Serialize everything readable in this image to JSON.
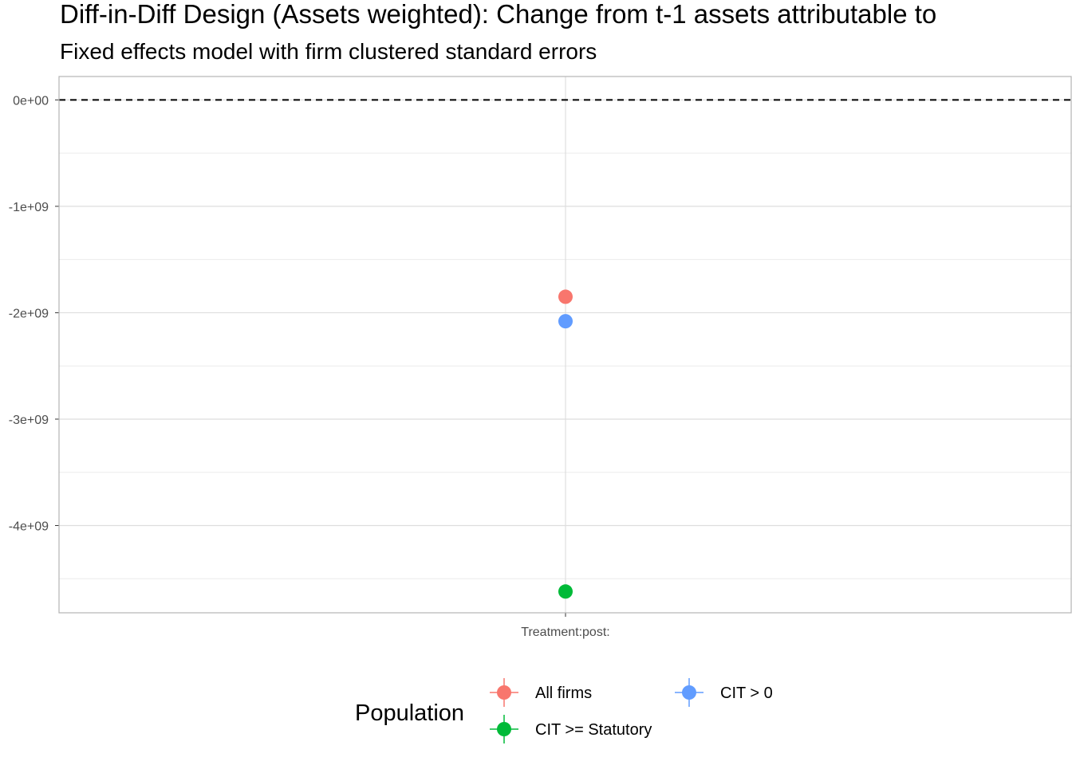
{
  "chart_data": {
    "type": "scatter",
    "title": "Diff-in-Diff Design (Assets weighted): Change from t-1 assets attributable to",
    "subtitle": "Fixed effects model with firm clustered standard errors",
    "xlabel": "",
    "ylabel": "",
    "categories": [
      "Treatment:post:"
    ],
    "ylim": [
      -4820000000,
      220000000
    ],
    "yticks": [
      0,
      -1000000000,
      -2000000000,
      -3000000000,
      -4000000000
    ],
    "ytick_labels": [
      "0e+00",
      "-1e+09",
      "-2e+09",
      "-3e+09",
      "-4e+09"
    ],
    "reference_line": {
      "y": 0,
      "style": "dashed"
    },
    "grid": true,
    "series": [
      {
        "name": "All firms",
        "color": "#F8766D",
        "values": [
          -1850000000
        ],
        "lower": [
          -1850000000
        ],
        "upper": [
          -1850000000
        ]
      },
      {
        "name": "CIT >= Statutory",
        "color": "#00BA38",
        "values": [
          -4620000000
        ],
        "lower": [
          -4620000000
        ],
        "upper": [
          -4620000000
        ]
      },
      {
        "name": "CIT > 0",
        "color": "#619CFF",
        "values": [
          -2080000000
        ],
        "lower": [
          -2080000000
        ],
        "upper": [
          -2080000000
        ]
      }
    ],
    "legend": {
      "title": "Population",
      "position": "bottom",
      "entries": [
        {
          "label": "All firms",
          "color": "#F8766D"
        },
        {
          "label": "CIT > 0",
          "color": "#619CFF"
        },
        {
          "label": "CIT >= Statutory",
          "color": "#00BA38"
        }
      ]
    }
  }
}
